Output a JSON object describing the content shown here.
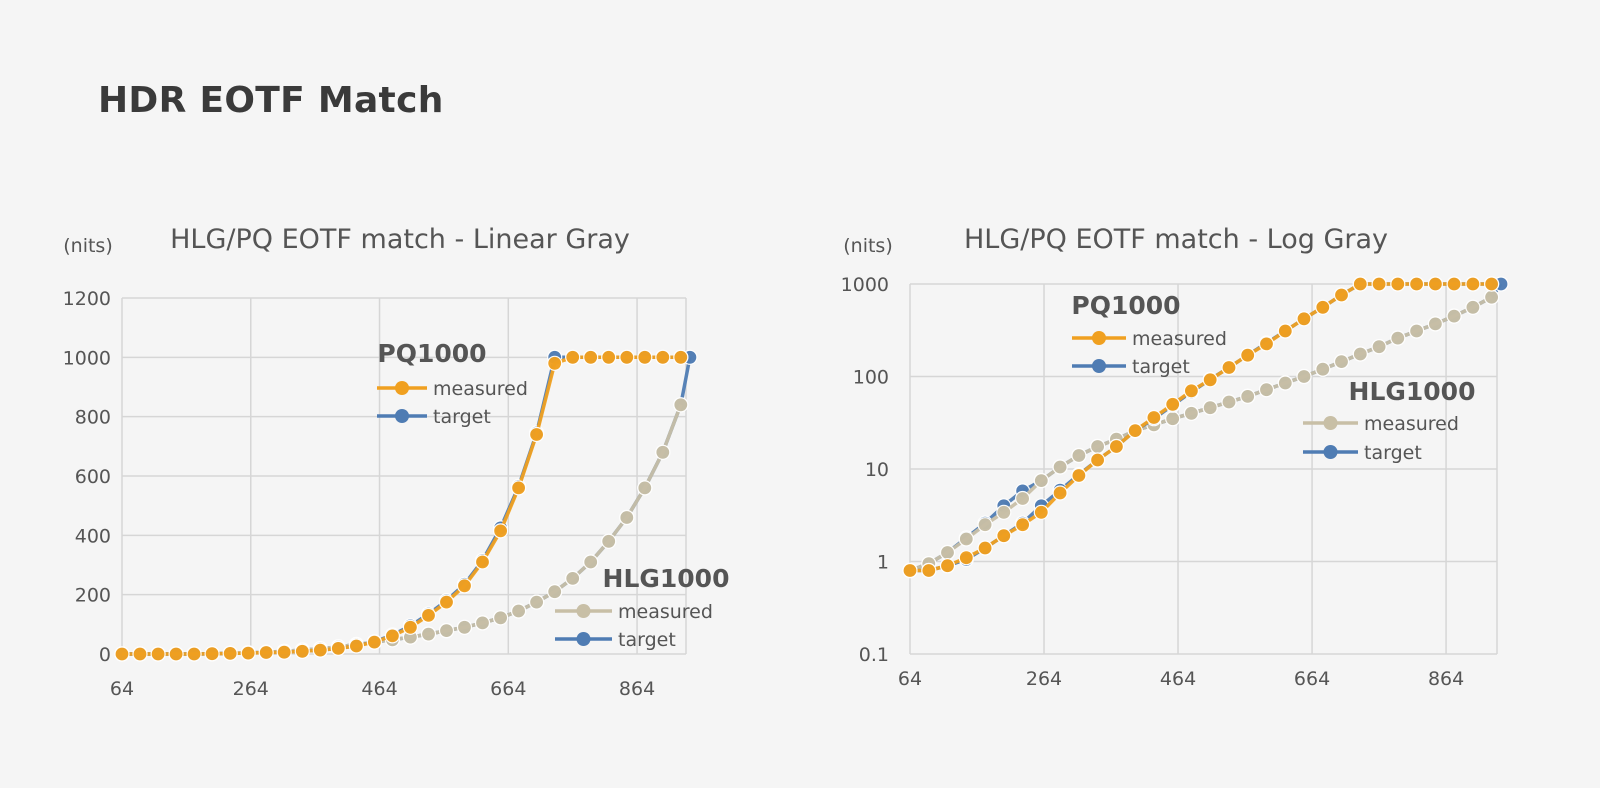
{
  "page_title": "HDR EOTF Match",
  "colors": {
    "pq_measured": "#f0a020",
    "target": "#4f7cb3",
    "hlg_measured": "#c8bfa6"
  },
  "chart_data": [
    {
      "type": "line",
      "title": "HLG/PQ EOTF match - Linear Gray",
      "ylabel": "(nits)",
      "xlabel": "",
      "xlim": [
        64,
        940
      ],
      "ylim": [
        0,
        1200
      ],
      "yscale": "linear",
      "x_ticks": [
        64,
        264,
        464,
        664,
        864
      ],
      "y_ticks": [
        0,
        200,
        400,
        600,
        800,
        1000,
        1200
      ],
      "y_tick_labels": [
        "0",
        "200",
        "400",
        "600",
        "800",
        "1000",
        "1200"
      ],
      "grid": true,
      "groups": [
        {
          "label": "PQ1000",
          "legend_position": "upper-middle",
          "series": [
            {
              "name": "measured",
              "role": "measured",
              "color": "#f0a020",
              "x": [
                64,
                92,
                120,
                148,
                176,
                204,
                232,
                260,
                288,
                316,
                344,
                372,
                400,
                428,
                456,
                484,
                512,
                540,
                568,
                596,
                624,
                652,
                680,
                708,
                736,
                764,
                792,
                820,
                848,
                876,
                904,
                932
              ],
              "y": [
                0,
                0,
                0,
                0,
                0,
                1,
                2,
                3,
                5,
                6,
                9,
                13,
                19,
                27,
                40,
                61,
                90,
                130,
                175,
                230,
                310,
                415,
                560,
                740,
                980,
                1000,
                1000,
                1000,
                1000,
                1000,
                1000,
                1000
              ]
            },
            {
              "name": "target",
              "role": "target",
              "color": "#4f7cb3",
              "x": [
                64,
                92,
                120,
                148,
                176,
                204,
                232,
                260,
                288,
                316,
                344,
                372,
                400,
                428,
                456,
                484,
                512,
                540,
                568,
                596,
                624,
                652,
                680,
                708,
                736,
                764,
                792,
                820,
                848,
                876,
                904,
                932
              ],
              "y": [
                0,
                0,
                0,
                0,
                0,
                1,
                2,
                3,
                5,
                6,
                9,
                13,
                19,
                28,
                41,
                64,
                95,
                135,
                180,
                235,
                315,
                425,
                565,
                745,
                1000,
                1000,
                1000,
                1000,
                1000,
                1000,
                1000,
                1000
              ]
            }
          ]
        },
        {
          "label": "HLG1000",
          "legend_position": "lower-right",
          "series": [
            {
              "name": "measured",
              "role": "measured",
              "color": "#c8bfa6",
              "x": [
                64,
                92,
                120,
                148,
                176,
                204,
                232,
                260,
                288,
                316,
                344,
                372,
                400,
                428,
                456,
                484,
                512,
                540,
                568,
                596,
                624,
                652,
                680,
                708,
                736,
                764,
                792,
                820,
                848,
                876,
                904,
                932
              ],
              "y": [
                0,
                0,
                0,
                0,
                0,
                1,
                2,
                4,
                6,
                9,
                13,
                18,
                24,
                32,
                40,
                48,
                57,
                67,
                79,
                90,
                105,
                122,
                145,
                175,
                210,
                255,
                310,
                380,
                460,
                560,
                680,
                840
              ]
            },
            {
              "name": "target",
              "role": "target",
              "color": "#4f7cb3",
              "x": [
                64,
                92,
                120,
                148,
                176,
                204,
                232,
                260,
                288,
                316,
                344,
                372,
                400,
                428,
                456,
                484,
                512,
                540,
                568,
                596,
                624,
                652,
                680,
                708,
                736,
                764,
                792,
                820,
                848,
                876,
                904,
                932,
                946
              ],
              "y": [
                0,
                0,
                0,
                0,
                0,
                1,
                2,
                4,
                6,
                9,
                13,
                18,
                24,
                32,
                40,
                48,
                57,
                67,
                79,
                90,
                105,
                122,
                145,
                175,
                210,
                255,
                310,
                380,
                460,
                560,
                680,
                840,
                1000
              ]
            }
          ]
        }
      ]
    },
    {
      "type": "line",
      "title": "HLG/PQ EOTF match - Log Gray",
      "ylabel": "(nits)",
      "xlabel": "",
      "xlim": [
        64,
        940
      ],
      "ylim": [
        0.1,
        1000
      ],
      "yscale": "log",
      "x_ticks": [
        64,
        264,
        464,
        664,
        864
      ],
      "y_ticks": [
        0.1,
        1,
        10,
        100,
        1000
      ],
      "y_tick_labels": [
        "0.1",
        "1",
        "10",
        "100",
        "1000"
      ],
      "grid": true,
      "groups": [
        {
          "label": "PQ1000",
          "legend_position": "upper-middle",
          "series": [
            {
              "name": "measured",
              "role": "measured",
              "color": "#f0a020",
              "x": [
                64,
                92,
                120,
                148,
                176,
                204,
                232,
                260,
                288,
                316,
                344,
                372,
                400,
                428,
                456,
                484,
                512,
                540,
                568,
                596,
                624,
                652,
                680,
                708,
                736,
                764,
                792,
                820,
                848,
                876,
                904,
                932
              ],
              "y": [
                0.8,
                0.8,
                0.9,
                1.1,
                1.4,
                1.9,
                2.5,
                3.4,
                5.5,
                8.5,
                12.5,
                17.5,
                26,
                36,
                50,
                70,
                92,
                125,
                170,
                225,
                310,
                420,
                560,
                760,
                1000,
                1000,
                1000,
                1000,
                1000,
                1000,
                1000,
                1000
              ]
            },
            {
              "name": "target",
              "role": "target",
              "color": "#4f7cb3",
              "x": [
                64,
                92,
                120,
                148,
                176,
                204,
                232,
                260,
                288,
                316,
                344,
                372,
                400,
                428,
                456,
                484,
                512,
                540,
                568,
                596,
                624,
                652,
                680,
                708,
                736,
                764,
                792,
                820,
                848,
                876,
                904,
                932
              ],
              "y": [
                0.8,
                0.8,
                0.9,
                1.05,
                1.4,
                1.9,
                2.6,
                4,
                5.9,
                8.7,
                12.5,
                17.5,
                26,
                35,
                49,
                68,
                93,
                125,
                170,
                230,
                310,
                420,
                560,
                760,
                1000,
                1000,
                1000,
                1000,
                1000,
                1000,
                1000,
                1000
              ]
            }
          ]
        },
        {
          "label": "HLG1000",
          "legend_position": "middle-right",
          "series": [
            {
              "name": "measured",
              "role": "measured",
              "color": "#c8bfa6",
              "x": [
                64,
                92,
                120,
                148,
                176,
                204,
                232,
                260,
                288,
                316,
                344,
                372,
                400,
                428,
                456,
                484,
                512,
                540,
                568,
                596,
                624,
                652,
                680,
                708,
                736,
                764,
                792,
                820,
                848,
                876,
                904,
                932
              ],
              "y": [
                0.8,
                0.95,
                1.25,
                1.75,
                2.5,
                3.4,
                4.8,
                7.5,
                10.5,
                14,
                17.5,
                21,
                26,
                30,
                35,
                40,
                46,
                53,
                61,
                72,
                85,
                100,
                120,
                145,
                175,
                210,
                260,
                310,
                370,
                450,
                560,
                720
              ]
            },
            {
              "name": "target",
              "role": "target",
              "color": "#4f7cb3",
              "x": [
                64,
                92,
                120,
                148,
                176,
                204,
                232,
                260,
                288,
                316,
                344,
                372,
                400,
                428,
                456,
                484,
                512,
                540,
                568,
                596,
                624,
                652,
                680,
                708,
                736,
                764,
                792,
                820,
                848,
                876,
                904,
                932,
                946
              ],
              "y": [
                0.8,
                0.95,
                1.25,
                1.8,
                2.6,
                4,
                5.8,
                7.5,
                10.5,
                14,
                17.5,
                21,
                26,
                30,
                35,
                40,
                46,
                53,
                61,
                72,
                85,
                100,
                120,
                145,
                175,
                210,
                260,
                310,
                370,
                450,
                560,
                720,
                1000
              ]
            }
          ]
        }
      ]
    }
  ]
}
